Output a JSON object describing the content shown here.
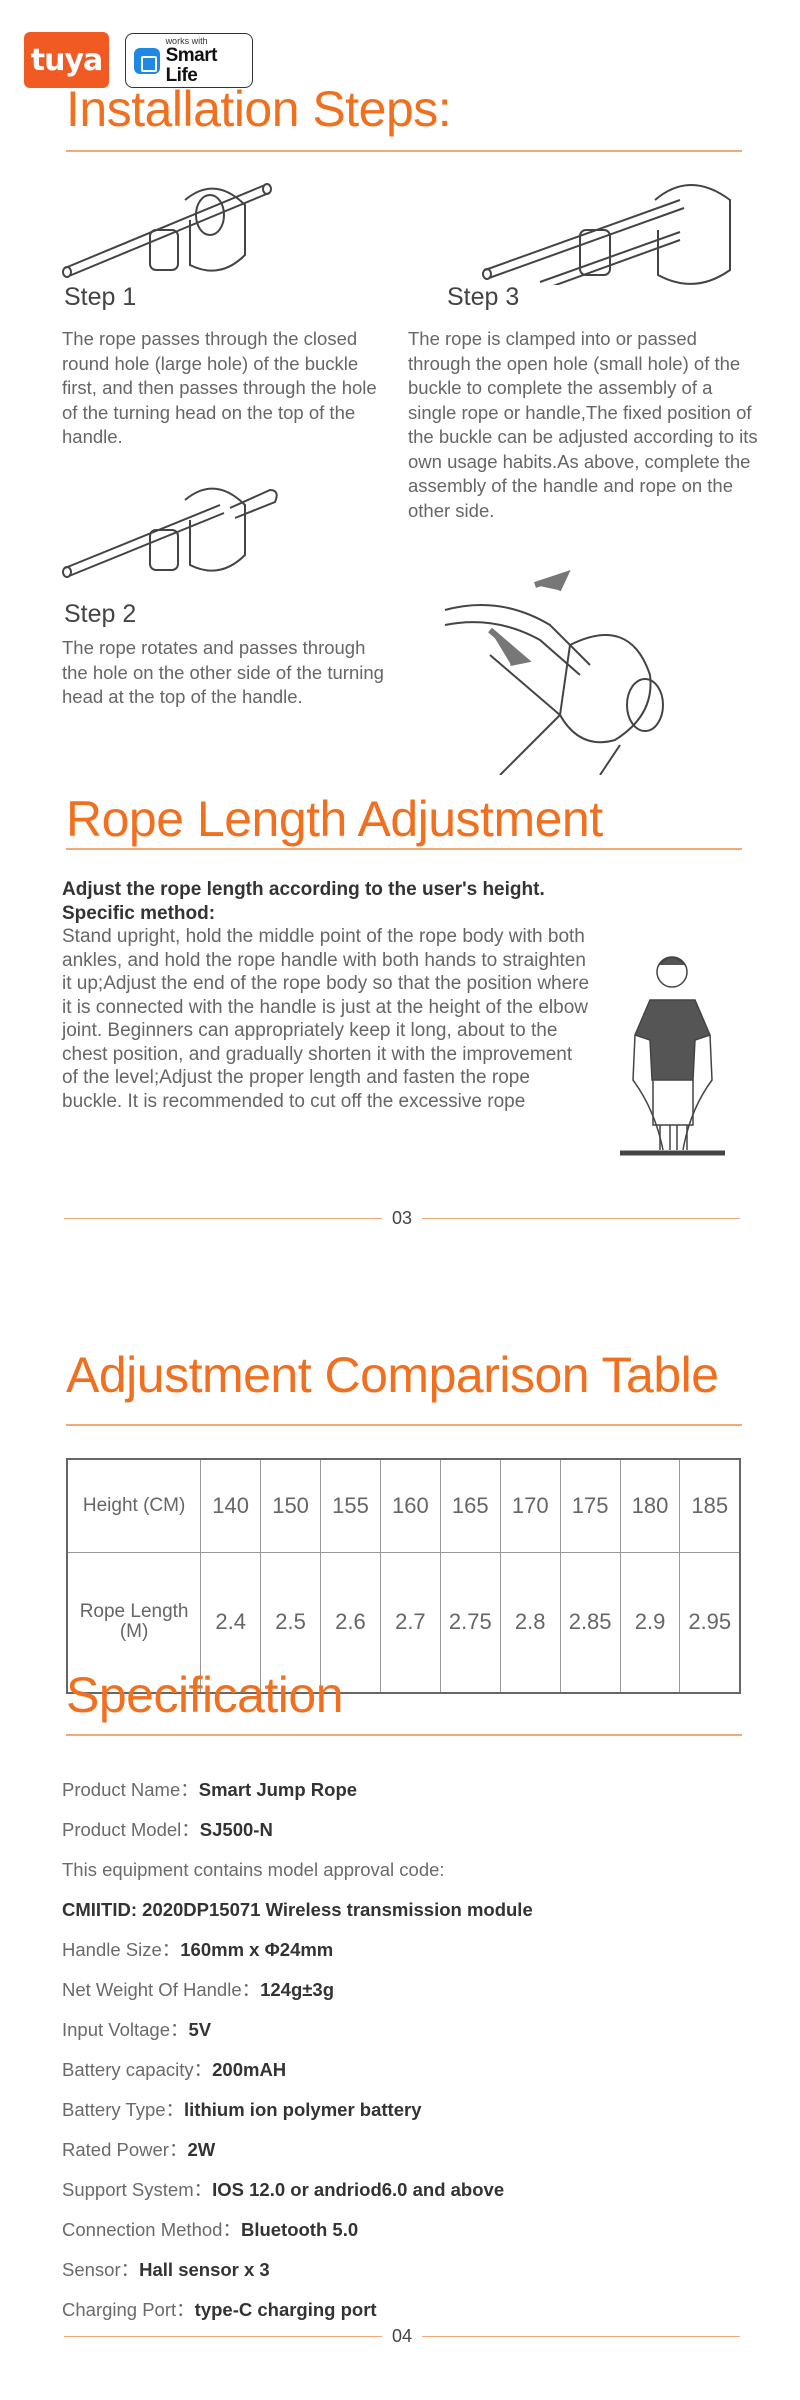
{
  "logos": {
    "tuya": "tuya",
    "works_with": "works with",
    "smart_life": "Smart Life"
  },
  "installation": {
    "title": "Installation Steps:",
    "steps": [
      {
        "label": "Step 1",
        "text": "The rope passes through the closed round hole (large hole) of the buckle first, and then passes through the hole of the turning head on the top of the handle."
      },
      {
        "label": "Step 2",
        "text": "The rope rotates and passes through the hole on the other side of the turning head at the top of the handle."
      },
      {
        "label": "Step 3",
        "text": "The rope is clamped into or passed through the open hole (small hole) of the buckle to complete the assembly of a single rope or handle,The fixed position of the buckle can be adjusted according to its own usage habits.As above, complete the assembly of the handle and rope on the other side."
      }
    ]
  },
  "rope_length": {
    "title": "Rope Length Adjustment",
    "lead": "Adjust the rope length according to the user's height.",
    "method_label": "Specific method:",
    "body": "Stand upright, hold the middle point of the rope body with both ankles, and hold the rope handle with both hands to straighten it up;Adjust the end of the rope body so that the position where it is connected with the handle is just at the height of the elbow joint. Beginners can appropriately keep it long, about to the chest position, and gradually shorten it with the improvement of the level;Adjust the proper length and fasten the rope buckle. It is recommended to cut off the excessive rope",
    "page": "03"
  },
  "comparison": {
    "title": "Adjustment Comparison Table",
    "row_headers": [
      "Height (CM)",
      "Rope Length (M)"
    ],
    "heights": [
      "140",
      "150",
      "155",
      "160",
      "165",
      "170",
      "175",
      "180",
      "185"
    ],
    "lengths": [
      "2.4",
      "2.5",
      "2.6",
      "2.7",
      "2.75",
      "2.8",
      "2.85",
      "2.9",
      "2.95"
    ]
  },
  "specification": {
    "title": "Specification",
    "items": [
      {
        "label": "Product Name：",
        "value": "Smart Jump Rope"
      },
      {
        "label": "Product Model：",
        "value": "SJ500-N"
      },
      {
        "label": "This equipment contains model approval code:",
        "value": ""
      },
      {
        "label": "",
        "value": "CMIITID: 2020DP15071 Wireless transmission module"
      },
      {
        "label": "Handle Size：",
        "value": "160mm x Φ24mm"
      },
      {
        "label": "Net Weight Of Handle：",
        "value": "124g±3g"
      },
      {
        "label": "Input Voltage：",
        "value": "5V"
      },
      {
        "label": "Battery capacity：",
        "value": "200mAH"
      },
      {
        "label": "Battery Type：",
        "value": "lithium ion polymer battery"
      },
      {
        "label": "Rated Power：",
        "value": "2W"
      },
      {
        "label": "Support System：",
        "value": "IOS 12.0 or andriod6.0 and above"
      },
      {
        "label": "Connection Method：",
        "value": "Bluetooth 5.0"
      },
      {
        "label": "Sensor：",
        "value": "Hall sensor x 3"
      },
      {
        "label": "Charging Port：",
        "value": "type-C charging port"
      }
    ],
    "page": "04"
  },
  "colors": {
    "accent": "#f07020",
    "rule": "#f2a878",
    "text": "#666666"
  }
}
